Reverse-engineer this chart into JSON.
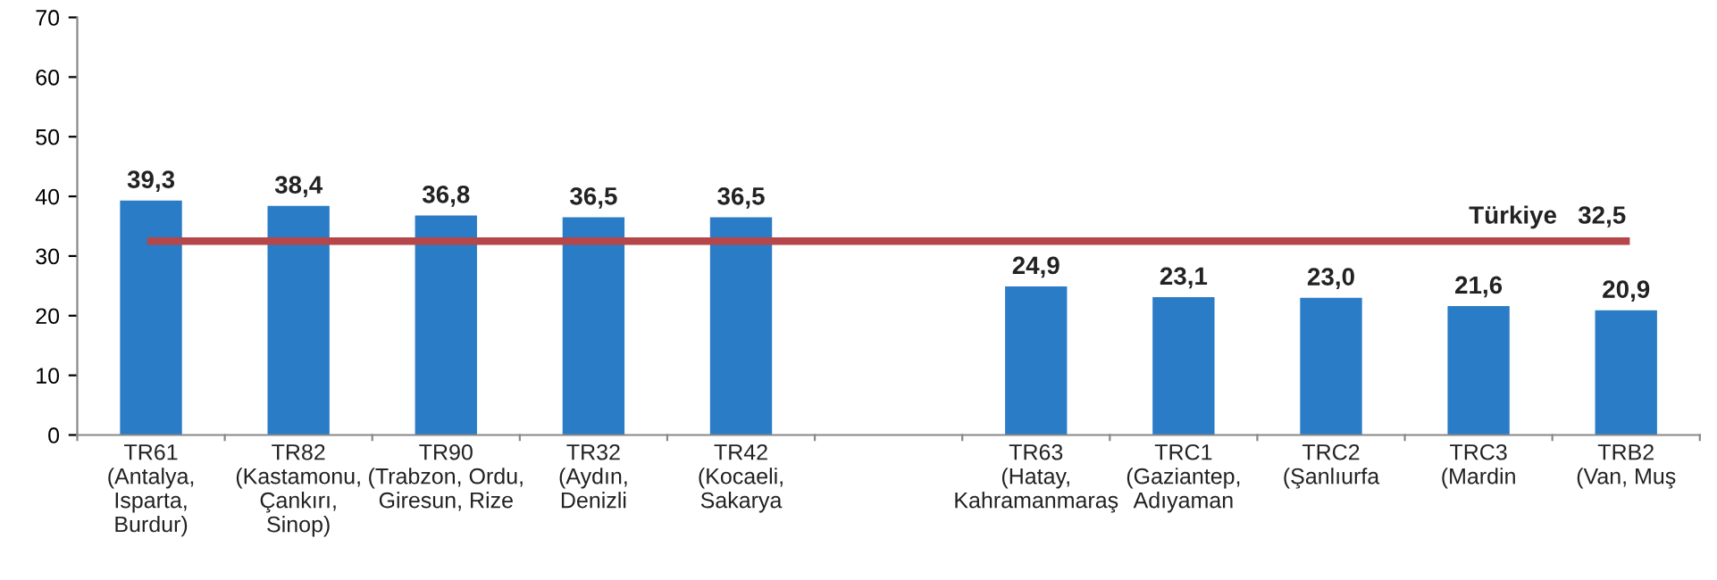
{
  "chart_data": {
    "type": "bar",
    "categories": [
      "TR61\n(Antalya,\nIsparta,\nBurdur)",
      "TR82\n(Kastamonu,\nÇankırı,\nSinop)",
      "TR90\n(Trabzon, Ordu,\nGiresun, Rize",
      "TR32\n(Aydın,\nDenizli",
      "TR42\n(Kocaeli,\nSakarya",
      null,
      "TR63\n(Hatay,\nKahramanmaraş",
      "TRC1\n(Gaziantep,\nAdıyaman",
      "TRC2\n(Şanlıurfa",
      "TRC3\n(Mardin",
      "TRB2\n(Van, Muş"
    ],
    "series": [
      {
        "color": "#2a7cc7",
        "values": [
          39.3,
          38.4,
          36.8,
          36.5,
          36.5,
          null,
          24.9,
          23.1,
          23.0,
          21.6,
          20.9
        ],
        "value_labels": [
          "39,3",
          "38,4",
          "36,8",
          "36,5",
          "36,5",
          null,
          "24,9",
          "23,1",
          "23,0",
          "21,6",
          "20,9"
        ]
      },
      {
        "type": "line",
        "name": "Türkiye",
        "color": "#b5474b",
        "values": [
          32.5,
          32.5,
          32.5,
          32.5,
          32.5,
          32.5,
          32.5,
          32.5,
          32.5,
          32.5,
          32.5
        ],
        "value_labels": [
          null,
          null,
          null,
          null,
          null,
          null,
          null,
          null,
          null,
          null,
          "32,5"
        ]
      }
    ],
    "ylim": [
      0,
      70
    ],
    "yticks": [
      0,
      10,
      20,
      30,
      40,
      50,
      60,
      70
    ],
    "grid": false,
    "legend": false,
    "marker": "none",
    "line_style": "solid"
  }
}
